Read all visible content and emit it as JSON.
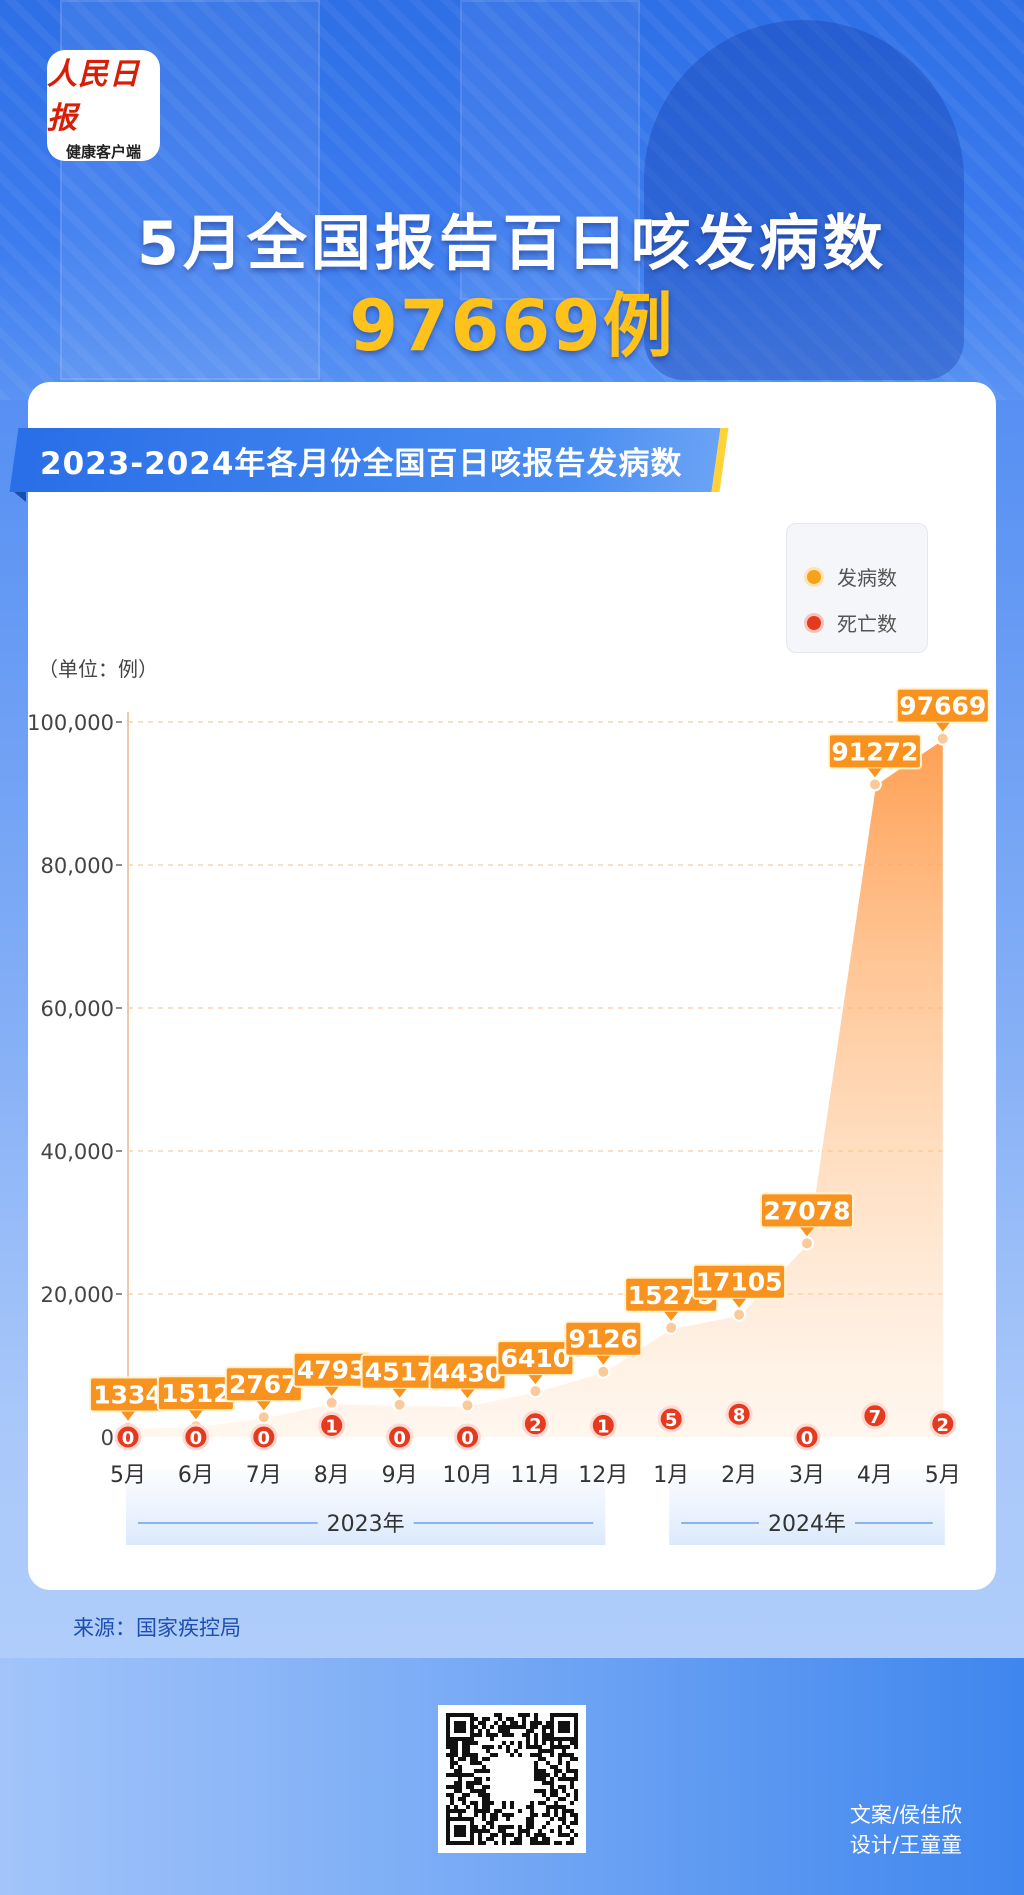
{
  "brand": {
    "logo_line1": "人民日报",
    "logo_line2": "健康客户端"
  },
  "headline": "5月全国报告百日咳发病数",
  "headline_number": "97669例",
  "panel_title": "2023-2024年各月份全国百日咳报告发病数",
  "unit_label": "（单位：例）",
  "legend": {
    "cases_label": "发病数",
    "deaths_label": "死亡数"
  },
  "source": "来源：国家疾控局",
  "credits": {
    "writer": "文案/侯佳欣",
    "designer": "设计/王童童"
  },
  "colors": {
    "cases": "#f7931e",
    "deaths": "#e53a1f",
    "accent_yellow": "#ffc21a",
    "brand_blue": "#2a6ee8"
  },
  "chart_data": {
    "type": "area",
    "categories": [
      "5月",
      "6月",
      "7月",
      "8月",
      "9月",
      "10月",
      "11月",
      "12月",
      "1月",
      "2月",
      "3月",
      "4月",
      "5月"
    ],
    "year_groups": [
      {
        "label": "2023年",
        "start": 0,
        "end": 7
      },
      {
        "label": "2024年",
        "start": 8,
        "end": 12
      }
    ],
    "series": [
      {
        "name": "发病数",
        "values": [
          1334,
          1512,
          2767,
          4793,
          4517,
          4430,
          6410,
          9126,
          15275,
          17105,
          27078,
          91272,
          97669
        ]
      },
      {
        "name": "死亡数",
        "values": [
          0,
          0,
          0,
          1,
          0,
          0,
          2,
          1,
          5,
          8,
          0,
          7,
          2
        ]
      }
    ],
    "ylim": [
      0,
      100000
    ],
    "yticks": [
      0,
      20000,
      40000,
      60000,
      80000,
      100000
    ],
    "ytick_labels": [
      "0",
      "20,000",
      "40,000",
      "60,000",
      "80,000",
      "100,000"
    ],
    "grid": true,
    "legend_position": "top-right"
  }
}
